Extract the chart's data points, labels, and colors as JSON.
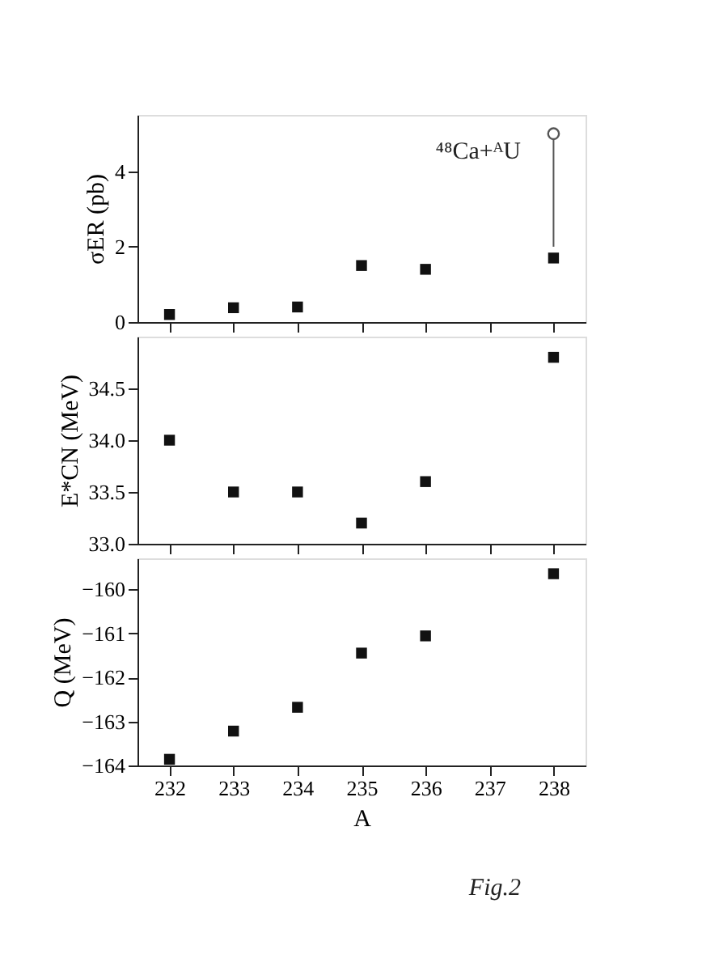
{
  "chart_data": [
    {
      "type": "scatter",
      "x": [
        232,
        233,
        234,
        235,
        236,
        238
      ],
      "ylabel": "σER (pb)",
      "xlim": [
        231.5,
        238.5
      ],
      "xticks": [
        232,
        233,
        234,
        235,
        236,
        237,
        238
      ],
      "ylim": [
        0,
        5.5
      ],
      "yticks": [
        0,
        2,
        4
      ],
      "tick_labels": "y",
      "grid": false,
      "annotations": [
        "⁴⁸Ca+ᴬU"
      ],
      "series": [
        {
          "color": "#111111",
          "marker": "square",
          "values": [
            0.2,
            0.38,
            0.4,
            1.5,
            1.4,
            1.7
          ]
        },
        {
          "color": "#555555",
          "marker": "circle",
          "x": [
            238
          ],
          "values": [
            5.0
          ],
          "errors": [
            [
              2.0,
              5.0
            ]
          ]
        }
      ]
    },
    {
      "type": "scatter",
      "x": [
        232,
        233,
        234,
        235,
        236,
        238
      ],
      "ylabel": "E*CN (MeV)",
      "xlim": [
        231.5,
        238.5
      ],
      "xticks": [
        232,
        233,
        234,
        235,
        236,
        237,
        238
      ],
      "ylim": [
        33,
        35
      ],
      "yticks": [
        {
          "value": 33,
          "label": "33.0"
        },
        33.5,
        {
          "value": 34,
          "label": "34.0"
        },
        34.5
      ],
      "tick_labels": "y",
      "grid": false,
      "series": [
        {
          "color": "#111111",
          "marker": "square",
          "values": [
            34.0,
            33.5,
            33.5,
            33.2,
            33.6,
            34.8
          ]
        }
      ]
    },
    {
      "type": "scatter",
      "x": [
        232,
        233,
        234,
        235,
        236,
        238
      ],
      "xlabel": "A",
      "ylabel": "Q (MeV)",
      "xlim": [
        231.5,
        238.5
      ],
      "xticks": [
        232,
        233,
        234,
        235,
        236,
        237,
        238
      ],
      "ylim": [
        -164,
        -159.3
      ],
      "yticks": [
        -164,
        -163,
        -162,
        -161,
        -160
      ],
      "grid": false,
      "annotations": [
        "Fig.2"
      ],
      "series": [
        {
          "color": "#111111",
          "marker": "square",
          "values": [
            -163.86,
            -163.22,
            -162.68,
            -161.45,
            -161.06,
            -159.65
          ]
        }
      ]
    }
  ]
}
